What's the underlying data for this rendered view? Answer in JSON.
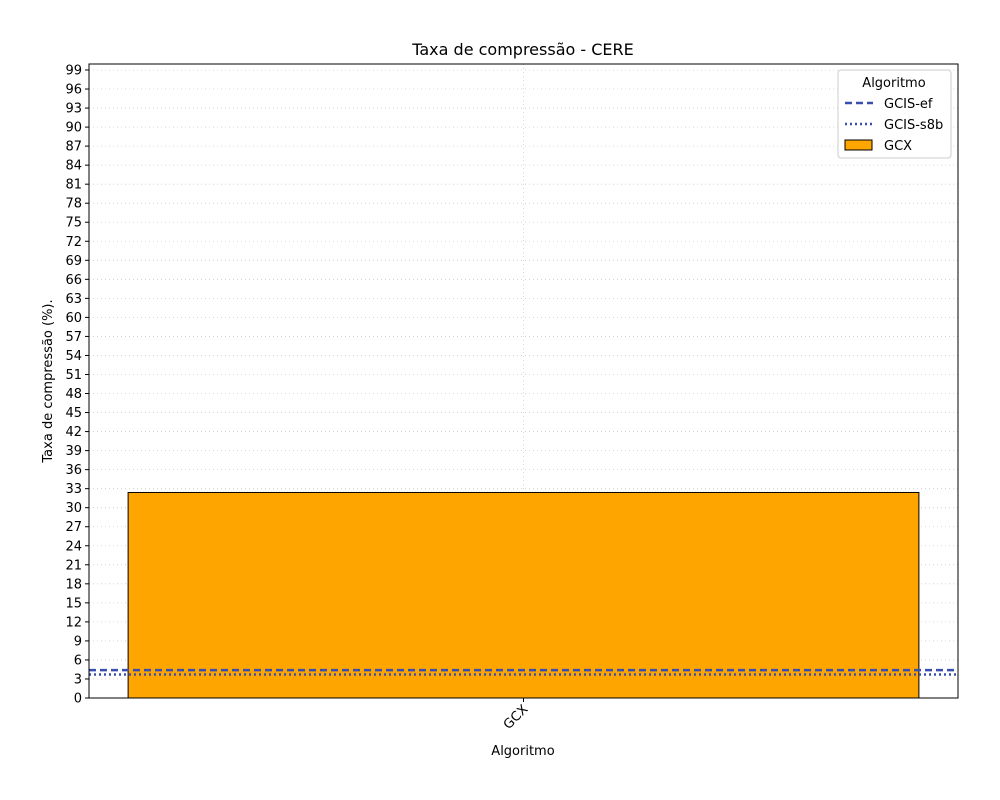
{
  "chart_data": {
    "type": "bar",
    "title": "Taxa de compressão -  CERE",
    "xlabel": "Algoritmo",
    "ylabel": "Taxa de compressão (%).",
    "categories": [
      "GCX"
    ],
    "values": [
      32.4
    ],
    "bar_color": "#FFA500",
    "bar_edge_color": "#000000",
    "ylim": [
      0,
      100
    ],
    "ytick_step": 3,
    "yticks": [
      0,
      3,
      6,
      9,
      12,
      15,
      18,
      21,
      24,
      27,
      30,
      33,
      36,
      39,
      42,
      45,
      48,
      51,
      54,
      57,
      60,
      63,
      66,
      69,
      72,
      75,
      78,
      81,
      84,
      87,
      90,
      93,
      96,
      99
    ],
    "xtick_rotation": 45,
    "grid": true,
    "reference_lines": [
      {
        "name": "GCIS-ef",
        "value": 4.4,
        "style": "dashed",
        "color": "#3A4EB0"
      },
      {
        "name": "GCIS-s8b",
        "value": 3.7,
        "style": "dotted",
        "color": "#3A4EB0"
      }
    ],
    "legend": {
      "title": "Algoritmo",
      "placement": "top-right",
      "entries": [
        "GCIS-ef",
        "GCIS-s8b",
        "GCX"
      ]
    }
  }
}
